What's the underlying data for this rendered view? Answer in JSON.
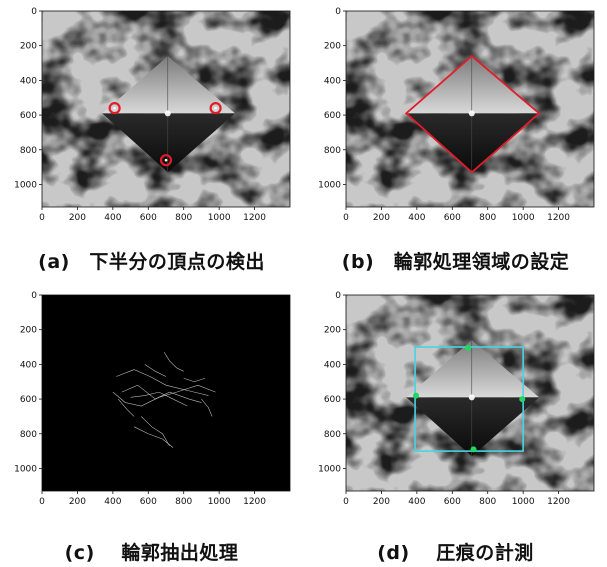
{
  "panels": [
    {
      "id": "a",
      "caption": "(a)　下半分の頂点の検出",
      "mode": "image",
      "overlay": "vertices"
    },
    {
      "id": "b",
      "caption": "(b)　輪郭処理領域の設定",
      "mode": "image",
      "overlay": "diamond"
    },
    {
      "id": "c",
      "caption": "(c)　 輪郭抽出処理",
      "mode": "edges",
      "overlay": "none"
    },
    {
      "id": "d",
      "caption": "(d)　 圧痕の計測",
      "mode": "image",
      "overlay": "box"
    }
  ],
  "axes": {
    "x_ticks": [
      "0",
      "200",
      "400",
      "600",
      "800",
      "1000",
      "1200"
    ],
    "y_ticks": [
      "0",
      "200",
      "400",
      "600",
      "800",
      "1000"
    ],
    "xlim": [
      0,
      1400
    ],
    "ylim": [
      0,
      1130
    ]
  },
  "overlays": {
    "vertices": [
      [
        410,
        560
      ],
      [
        980,
        560
      ],
      [
        700,
        860
      ]
    ],
    "diamond": [
      [
        710,
        260
      ],
      [
        1090,
        590
      ],
      [
        710,
        930
      ],
      [
        340,
        590
      ]
    ],
    "box": [
      [
        390,
        300
      ],
      [
        1000,
        900
      ]
    ],
    "measure_points": [
      [
        690,
        305
      ],
      [
        395,
        580
      ],
      [
        995,
        600
      ],
      [
        720,
        890
      ]
    ]
  },
  "colors": {
    "red": "#e11d2a",
    "cyan": "#49d3e6",
    "green": "#1ed860"
  }
}
